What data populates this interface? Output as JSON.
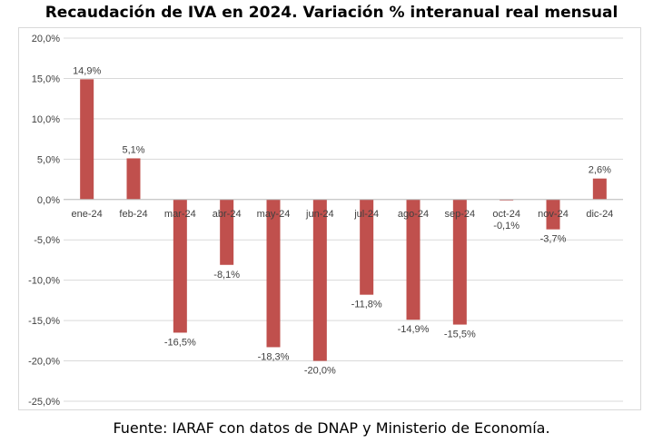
{
  "chart_data": {
    "type": "bar",
    "title": "Recaudación de IVA en 2024. Variación % interanual real mensual",
    "source": "Fuente: IARAF con datos de DNAP y Ministerio de Economía.",
    "categories": [
      "ene-24",
      "feb-24",
      "mar-24",
      "abr-24",
      "may-24",
      "jun-24",
      "jul-24",
      "ago-24",
      "sep-24",
      "oct-24",
      "nov-24",
      "dic-24"
    ],
    "values": [
      14.9,
      5.1,
      -16.5,
      -8.1,
      -18.3,
      -20.0,
      -11.8,
      -14.9,
      -15.5,
      -0.1,
      -3.7,
      2.6
    ],
    "data_labels": [
      "14,9%",
      "5,1%",
      "-16,5%",
      "-8,1%",
      "-18,3%",
      "-20,0%",
      "-11,8%",
      "-14,9%",
      "-15,5%",
      "-0,1%",
      "-3,7%",
      "2,6%"
    ],
    "y_ticks": [
      20,
      15,
      10,
      5,
      0,
      -5,
      -10,
      -15,
      -20,
      -25
    ],
    "y_tick_labels": [
      "20,0%",
      "15,0%",
      "10,0%",
      "5,0%",
      "0,0%",
      "-5,0%",
      "-10,0%",
      "-15,0%",
      "-20,0%",
      "-25,0%"
    ],
    "ylim": [
      -25,
      20
    ],
    "xlabel": "",
    "ylabel": "",
    "grid": true,
    "legend": "none",
    "bar_color": "#c0504d",
    "grid_color": "#d9d9d9",
    "axis_color": "#bfbfbf"
  }
}
